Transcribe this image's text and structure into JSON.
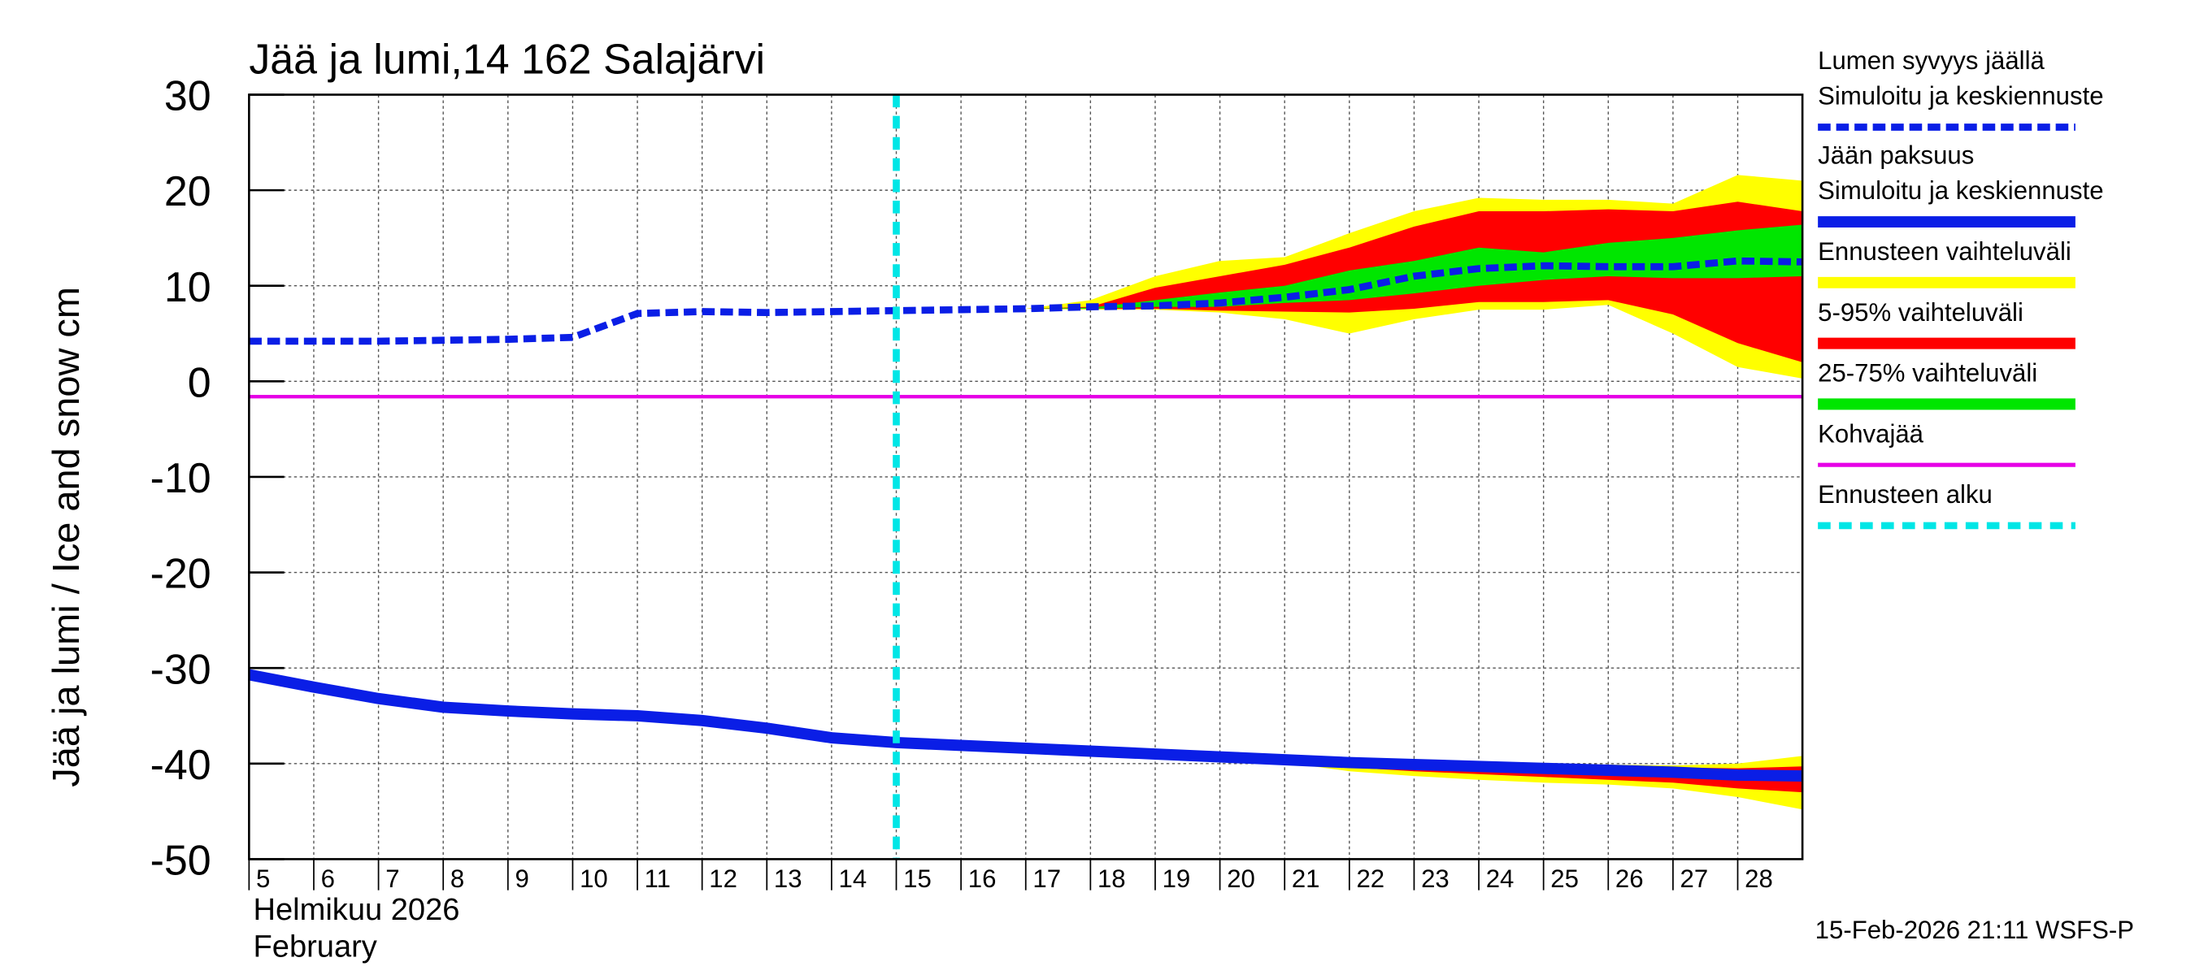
{
  "chart_data": {
    "type": "line",
    "title": "Jää ja lumi,14 162 Salajärvi",
    "ylabel": "Jää ja lumi / Ice and snow    cm",
    "xlabel_lines": [
      "Helmikuu  2026",
      "February"
    ],
    "footer": "15-Feb-2026 21:11 WSFS-P",
    "xlim": [
      5,
      29
    ],
    "xticks": [
      5,
      6,
      7,
      8,
      9,
      10,
      11,
      12,
      13,
      14,
      15,
      16,
      17,
      18,
      19,
      20,
      21,
      22,
      23,
      24,
      25,
      26,
      27,
      28
    ],
    "ylim": [
      -50,
      30
    ],
    "yticks": [
      -50,
      -40,
      -30,
      -20,
      -10,
      0,
      10,
      20,
      30
    ],
    "grid": true,
    "x": [
      5,
      6,
      7,
      8,
      9,
      10,
      11,
      12,
      13,
      14,
      15,
      16,
      17,
      18,
      19,
      20,
      21,
      22,
      23,
      24,
      25,
      26,
      27,
      28,
      29
    ],
    "series": [
      {
        "group": "Lumen syvyys jäällä",
        "name": "Simuloitu ja keskiennuste",
        "color": "#0a1ee6",
        "dashed": true,
        "values": [
          4.2,
          4.2,
          4.2,
          4.3,
          4.4,
          4.6,
          7.1,
          7.3,
          7.2,
          7.3,
          7.4,
          7.5,
          7.6,
          7.8,
          7.9,
          8.2,
          8.8,
          9.6,
          11,
          11.8,
          12.1,
          12,
          12,
          12.6,
          12.5
        ]
      },
      {
        "group": "Jään paksuus",
        "name": "Simuloitu ja keskiennuste",
        "color": "#0a1ee6",
        "dashed": false,
        "values": [
          -30.7,
          -32,
          -33.2,
          -34.1,
          -34.5,
          -34.8,
          -35,
          -35.5,
          -36.3,
          -37.3,
          -37.8,
          -38.1,
          -38.4,
          -38.7,
          -39,
          -39.3,
          -39.6,
          -39.9,
          -40.1,
          -40.3,
          -40.5,
          -40.7,
          -40.9,
          -41.2,
          -41.3
        ]
      }
    ],
    "band_x_snow": [
      17,
      18,
      19,
      20,
      21,
      22,
      23,
      24,
      25,
      26,
      27,
      28,
      29
    ],
    "band_x_ice": [
      20,
      21,
      22,
      23,
      24,
      25,
      26,
      27,
      28,
      29
    ],
    "bands": [
      {
        "name": "Ennusteen vaihteluväli",
        "color": "#ffff00",
        "snow": {
          "upper": [
            7.6,
            8.5,
            11,
            12.6,
            13,
            15.5,
            17.8,
            19.2,
            19,
            19,
            18.6,
            21.6,
            21
          ],
          "lower": [
            7.6,
            7.5,
            7.5,
            7.2,
            6.5,
            5,
            6.5,
            7.5,
            7.5,
            8,
            5,
            1.5,
            0.3
          ]
        },
        "ice": {
          "upper": [
            -39.3,
            -39.5,
            -39.7,
            -39.8,
            -39.9,
            -40,
            -40.1,
            -40.2,
            -40,
            -39.2
          ],
          "lower": [
            -39.3,
            -39.9,
            -40.8,
            -41.3,
            -41.7,
            -42,
            -42.2,
            -42.6,
            -43.5,
            -44.8
          ]
        }
      },
      {
        "name": "5-95% vaihteluväli",
        "color": "#ff0000",
        "snow": {
          "upper": [
            7.6,
            7.8,
            9.8,
            11,
            12.2,
            14,
            16.2,
            17.8,
            17.8,
            18,
            17.8,
            18.8,
            17.8
          ],
          "lower": [
            7.6,
            7.6,
            7.6,
            7.4,
            7.3,
            7.2,
            7.6,
            8.3,
            8.3,
            8.5,
            7,
            4,
            2
          ]
        },
        "ice": {
          "upper": [
            -39.3,
            -39.5,
            -39.7,
            -39.8,
            -40,
            -40.1,
            -40.2,
            -40.4,
            -40.5,
            -40.3
          ],
          "lower": [
            -39.3,
            -39.8,
            -40.4,
            -40.8,
            -41.1,
            -41.4,
            -41.7,
            -42,
            -42.6,
            -43
          ]
        }
      },
      {
        "name": "25-75% vaihteluväli",
        "color": "#00e600",
        "snow": {
          "upper": [
            7.6,
            7.7,
            8.5,
            9.3,
            10,
            11.6,
            12.6,
            14,
            13.5,
            14.5,
            15,
            15.8,
            16.4
          ],
          "lower": [
            7.6,
            7.6,
            7.8,
            7.8,
            8.2,
            8.5,
            9.2,
            10,
            10.6,
            11,
            10.8,
            10.8,
            11
          ]
        },
        "ice": {
          "upper": [
            -39.3,
            -39.6,
            -39.8,
            -40,
            -40.2,
            -40.3,
            -40.5,
            -40.7,
            -40.9,
            -41
          ],
          "lower": [
            -39.3,
            -39.7,
            -40,
            -40.2,
            -40.5,
            -40.7,
            -40.9,
            -41.1,
            -41.4,
            -41.6
          ]
        }
      }
    ],
    "hline": {
      "name": "Kohvajää",
      "color": "#e600e6",
      "value": -1.6
    },
    "vline": {
      "name": "Ennusteen alku",
      "color": "#00e6e6",
      "x": 15
    }
  }
}
